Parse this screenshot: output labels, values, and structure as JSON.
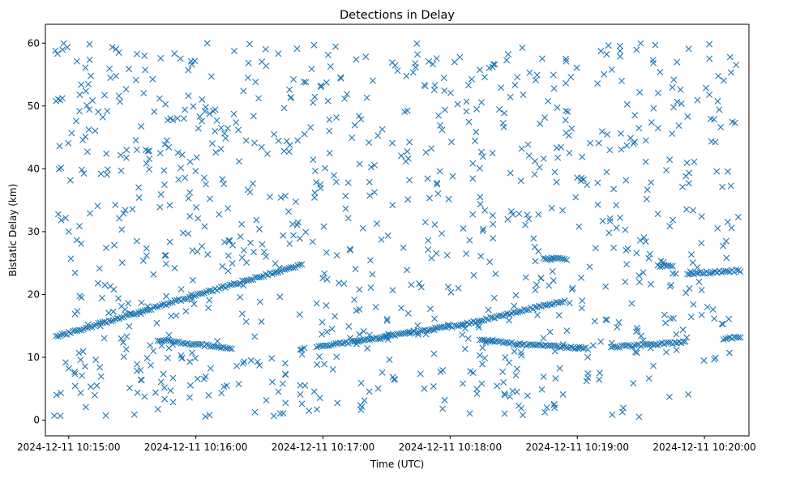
{
  "chart_data": {
    "type": "scatter",
    "title": "Detections in Delay",
    "xlabel": "Time (UTC)",
    "ylabel": "Bistatic Delay (km)",
    "marker": "x",
    "x_unit": "seconds since 2024-12-11 10:15:00",
    "xlim": [
      -11,
      321
    ],
    "ylim": [
      -2.5,
      63
    ],
    "grid": false,
    "x_ticks": [
      {
        "value": 0,
        "label": "2024-12-11 10:15:00"
      },
      {
        "value": 60,
        "label": "2024-12-11 10:16:00"
      },
      {
        "value": 120,
        "label": "2024-12-11 10:17:00"
      },
      {
        "value": 180,
        "label": "2024-12-11 10:18:00"
      },
      {
        "value": 240,
        "label": "2024-12-11 10:19:00"
      },
      {
        "value": 300,
        "label": "2024-12-11 10:20:00"
      }
    ],
    "y_ticks": [
      {
        "value": 0,
        "label": "0"
      },
      {
        "value": 10,
        "label": "10"
      },
      {
        "value": 20,
        "label": "20"
      },
      {
        "value": 30,
        "label": "30"
      },
      {
        "value": 40,
        "label": "40"
      },
      {
        "value": 50,
        "label": "50"
      },
      {
        "value": 60,
        "label": "60"
      }
    ],
    "series": [
      {
        "name": "Detections",
        "color": "#1f77b4",
        "tracks": [
          {
            "x_start": -6,
            "x_end": 110,
            "y_start": 13.3,
            "y_end": 24.8,
            "step": 1.0
          },
          {
            "x_start": -6,
            "x_end": -3,
            "y_start": 50.8,
            "y_end": 51.2,
            "step": 1.0
          },
          {
            "x_start": 42,
            "x_end": 77,
            "y_start": 12.8,
            "y_end": 11.4,
            "step": 1.0
          },
          {
            "x_start": 117,
            "x_end": 186,
            "y_start": 11.6,
            "y_end": 15.2,
            "step": 1.0
          },
          {
            "x_start": 186,
            "x_end": 234,
            "y_start": 15.2,
            "y_end": 19.0,
            "step": 1.0
          },
          {
            "x_start": 194,
            "x_end": 212,
            "y_start": 12.8,
            "y_end": 12.1,
            "step": 1.0
          },
          {
            "x_start": 212,
            "x_end": 245,
            "y_start": 12.1,
            "y_end": 11.4,
            "step": 1.0
          },
          {
            "x_start": 224,
            "x_end": 235,
            "y_start": 25.8,
            "y_end": 25.6,
            "step": 1.0
          },
          {
            "x_start": 256,
            "x_end": 291,
            "y_start": 11.6,
            "y_end": 12.4,
            "step": 1.0
          },
          {
            "x_start": 278,
            "x_end": 285,
            "y_start": 24.6,
            "y_end": 24.6,
            "step": 1.0
          },
          {
            "x_start": 292,
            "x_end": 317,
            "y_start": 23.3,
            "y_end": 23.8,
            "step": 1.0
          },
          {
            "x_start": 309,
            "x_end": 317,
            "y_start": 13.0,
            "y_end": 13.2,
            "step": 1.0
          }
        ],
        "noise": {
          "count": 980,
          "x_range": [
            -7,
            316
          ],
          "y_range": [
            0.5,
            60
          ]
        }
      }
    ]
  }
}
